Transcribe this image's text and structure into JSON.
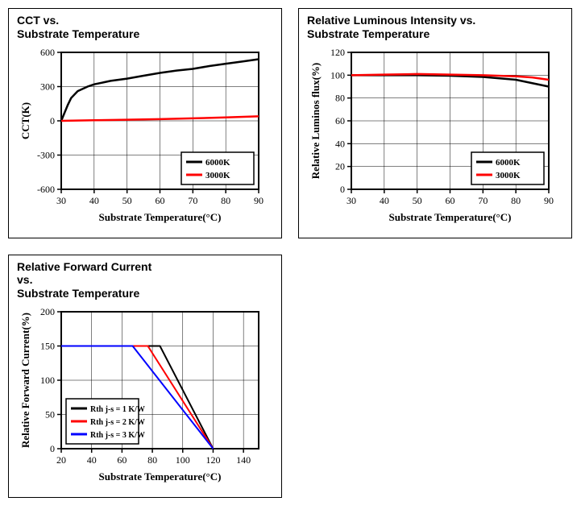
{
  "chart1": {
    "title_line1": "CCT vs.",
    "title_line2": "Substrate Temperature",
    "xlabel": "Substrate Temperature(°C)",
    "ylabel": "CCT(K)",
    "xlim": [
      30,
      90
    ],
    "xtick_step": 10,
    "xticks": [
      30,
      40,
      50,
      60,
      70,
      80,
      90
    ],
    "ylim": [
      -600,
      600
    ],
    "ytick_step": 300,
    "yticks": [
      -600,
      -300,
      0,
      300,
      600
    ],
    "series": [
      {
        "label": "6000K",
        "color": "#000000",
        "line_width": 2.5,
        "x": [
          30,
          31,
          32,
          33,
          35,
          38,
          40,
          45,
          50,
          55,
          60,
          65,
          70,
          75,
          80,
          85,
          90
        ],
        "y": [
          0,
          70,
          140,
          200,
          260,
          300,
          320,
          350,
          370,
          395,
          420,
          440,
          455,
          480,
          500,
          520,
          540
        ]
      },
      {
        "label": "3000K",
        "color": "#ff0000",
        "line_width": 2.5,
        "x": [
          30,
          40,
          50,
          60,
          70,
          80,
          90
        ],
        "y": [
          0,
          5,
          10,
          15,
          22,
          30,
          40
        ]
      }
    ],
    "legend_pos": "bottom-right",
    "background_color": "#ffffff",
    "axis_color": "#000000",
    "grid_color": "#000000",
    "title_fontsize": 14,
    "label_fontsize": 13,
    "tick_fontsize": 12,
    "legend_fontsize": 11
  },
  "chart2": {
    "title_line1": "Relative Luminous Intensity vs.",
    "title_line2": "Substrate Temperature",
    "xlabel": "Substrate Temperature(°C)",
    "ylabel": "Relative Luminos flux(%)",
    "xlim": [
      30,
      90
    ],
    "xtick_step": 10,
    "xticks": [
      30,
      40,
      50,
      60,
      70,
      80,
      90
    ],
    "ylim": [
      0,
      120
    ],
    "ytick_step": 20,
    "yticks": [
      0,
      20,
      40,
      60,
      80,
      100,
      120
    ],
    "series": [
      {
        "label": "6000K",
        "color": "#000000",
        "line_width": 2.5,
        "x": [
          30,
          40,
          50,
          60,
          70,
          80,
          85,
          90
        ],
        "y": [
          100,
          100,
          100,
          99.5,
          98.5,
          96,
          93,
          90
        ]
      },
      {
        "label": "3000K",
        "color": "#ff0000",
        "line_width": 2.5,
        "x": [
          30,
          40,
          50,
          60,
          70,
          80,
          85,
          90
        ],
        "y": [
          100,
          100.5,
          101,
          100.5,
          100,
          99,
          98,
          96
        ]
      }
    ],
    "legend_pos": "bottom-right",
    "background_color": "#ffffff",
    "axis_color": "#000000",
    "grid_color": "#000000",
    "title_fontsize": 14,
    "label_fontsize": 13,
    "tick_fontsize": 12,
    "legend_fontsize": 11
  },
  "chart3": {
    "title_line1": "Relative Forward Current",
    "title_line2": "vs.",
    "title_line3": "Substrate Temperature",
    "xlabel": "Substrate Temperature(°C)",
    "ylabel": "Relative Forward Current(%)",
    "xlim": [
      20,
      150
    ],
    "xtick_step": 20,
    "xticks": [
      20,
      40,
      60,
      80,
      100,
      120,
      140
    ],
    "ylim": [
      0,
      200
    ],
    "ytick_step": 50,
    "yticks": [
      0,
      50,
      100,
      150,
      200
    ],
    "series": [
      {
        "label": "Rth j-s = 1 K/W",
        "color": "#000000",
        "line_width": 2.0,
        "x": [
          20,
          85,
          120
        ],
        "y": [
          150,
          150,
          0
        ]
      },
      {
        "label": "Rth j-s = 2 K/W",
        "color": "#ff0000",
        "line_width": 2.0,
        "x": [
          20,
          77,
          120
        ],
        "y": [
          150,
          150,
          0
        ]
      },
      {
        "label": "Rth j-s = 3 K/W",
        "color": "#0000ff",
        "line_width": 2.0,
        "x": [
          20,
          67,
          120
        ],
        "y": [
          150,
          150,
          0
        ]
      }
    ],
    "legend_pos": "bottom-left",
    "background_color": "#ffffff",
    "axis_color": "#000000",
    "grid_color": "#000000",
    "title_fontsize": 14,
    "label_fontsize": 13,
    "tick_fontsize": 12,
    "legend_fontsize": 10
  }
}
